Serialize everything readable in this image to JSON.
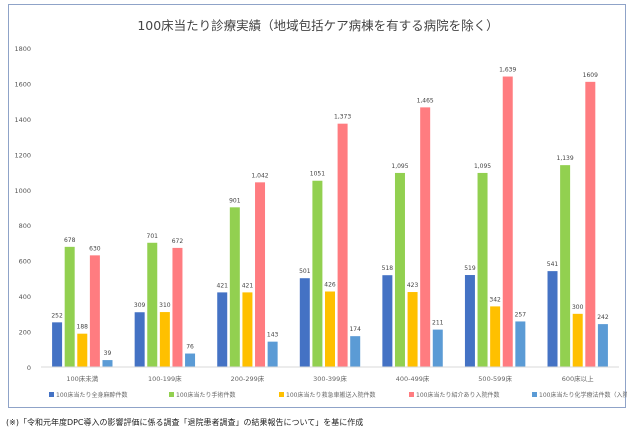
{
  "chart_data": {
    "type": "bar",
    "title": "100床当たり診療実績（地域包括ケア病棟を有する病院を除く）",
    "xlabel": "",
    "ylabel": "",
    "ylim": [
      0,
      1800
    ],
    "yticks": [
      0,
      200,
      400,
      600,
      800,
      1000,
      1200,
      1400,
      1600,
      1800
    ],
    "grid": false,
    "legend_position": "bottom",
    "categories": [
      "100床未満",
      "100-199床",
      "200-299床",
      "300-399床",
      "400-499床",
      "500-599床",
      "600床以上"
    ],
    "series": [
      {
        "name": "100床当たり全身麻酔件数",
        "color": "#4472c4",
        "values": [
          252,
          309,
          421,
          501,
          518,
          519,
          541
        ],
        "labels": [
          "252",
          "309",
          "421",
          "501",
          "518",
          "519",
          "541"
        ]
      },
      {
        "name": "100床当たり手術件数",
        "color": "#92d050",
        "values": [
          678,
          701,
          901,
          1051,
          1095,
          1095,
          1139
        ],
        "labels": [
          "678",
          "701",
          "901",
          "1051",
          "1,095",
          "1,095",
          "1,139"
        ]
      },
      {
        "name": "100床当たり救急車搬送入院件数",
        "color": "#ffc000",
        "values": [
          188,
          310,
          421,
          426,
          423,
          342,
          300
        ],
        "labels": [
          "188",
          "310",
          "421",
          "426",
          "423",
          "342",
          "300"
        ]
      },
      {
        "name": "100床当たり紹介あり入院件数",
        "color": "#ff7c80",
        "values": [
          630,
          672,
          1042,
          1373,
          1465,
          1639,
          1609
        ],
        "labels": [
          "630",
          "672",
          "1,042",
          "1,373",
          "1,465",
          "1,639",
          "1609"
        ]
      },
      {
        "name": "100床当たり化学療法件数（入院）",
        "color": "#5b9bd5",
        "values": [
          39,
          76,
          143,
          174,
          211,
          257,
          242
        ],
        "labels": [
          "39",
          "76",
          "143",
          "174",
          "211",
          "257",
          "242"
        ]
      }
    ]
  },
  "footnote": "(※)「令和元年度DPC導入の影響評価に係る調査「退院患者調査」の結果報告について」を基に作成"
}
